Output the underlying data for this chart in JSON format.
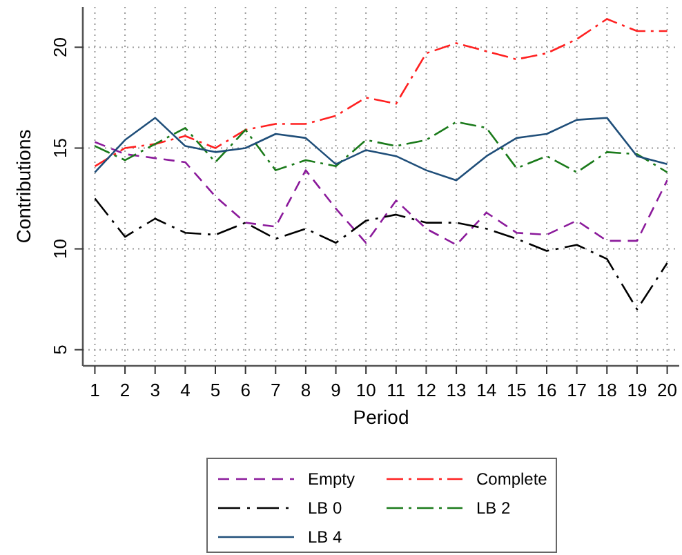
{
  "chart_data": {
    "type": "line",
    "xlabel": "Period",
    "ylabel": "Contributions",
    "x": [
      1,
      2,
      3,
      4,
      5,
      6,
      7,
      8,
      9,
      10,
      11,
      12,
      13,
      14,
      15,
      16,
      17,
      18,
      19,
      20
    ],
    "xlim": [
      0.6,
      20.4
    ],
    "xticks": [
      1,
      2,
      3,
      4,
      5,
      6,
      7,
      8,
      9,
      10,
      11,
      12,
      13,
      14,
      15,
      16,
      17,
      18,
      19,
      20
    ],
    "ylim": [
      4.2,
      22
    ],
    "yticks": [
      5,
      10,
      15,
      20
    ],
    "grid": true,
    "legend": "bottom",
    "marker": "none",
    "series": [
      {
        "name": "Empty",
        "color": "#8b1a9b",
        "line_style": "dashed",
        "values": [
          15.3,
          14.7,
          14.5,
          14.3,
          12.6,
          11.3,
          11.1,
          13.9,
          12.0,
          10.3,
          12.4,
          11.0,
          10.2,
          11.8,
          10.8,
          10.7,
          11.4,
          10.4,
          10.4,
          13.4
        ]
      },
      {
        "name": "Complete",
        "color": "#ff2020",
        "line_style": "dashdot",
        "values": [
          14.1,
          15.0,
          15.2,
          15.6,
          15.0,
          15.9,
          16.2,
          16.2,
          16.6,
          17.5,
          17.2,
          19.7,
          20.2,
          19.8,
          19.4,
          19.7,
          20.4,
          21.4,
          20.8,
          20.8
        ]
      },
      {
        "name": "LB 0",
        "color": "#000000",
        "line_style": "longdashdot",
        "values": [
          12.5,
          10.6,
          11.5,
          10.8,
          10.7,
          11.3,
          10.5,
          11.0,
          10.3,
          11.4,
          11.7,
          11.3,
          11.3,
          11.0,
          10.5,
          9.9,
          10.2,
          9.5,
          7.0,
          9.3
        ]
      },
      {
        "name": "LB 2",
        "color": "#1a7a1a",
        "line_style": "dashdot",
        "values": [
          15.1,
          14.4,
          15.2,
          16.0,
          14.3,
          15.9,
          13.9,
          14.4,
          14.1,
          15.4,
          15.1,
          15.4,
          16.3,
          16.0,
          14.0,
          14.6,
          13.8,
          14.8,
          14.7,
          13.8
        ]
      },
      {
        "name": "LB 4",
        "color": "#1f4e79",
        "line_style": "solid",
        "values": [
          13.8,
          15.4,
          16.5,
          15.1,
          14.8,
          15.0,
          15.7,
          15.5,
          14.2,
          14.9,
          14.6,
          13.9,
          13.4,
          14.6,
          15.5,
          15.7,
          16.4,
          16.5,
          14.6,
          14.2
        ]
      }
    ]
  }
}
